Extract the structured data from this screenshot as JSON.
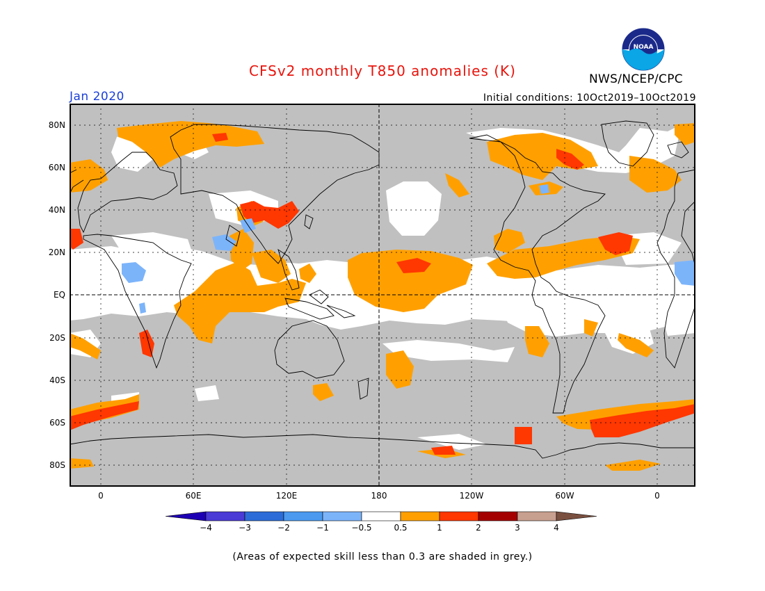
{
  "title": "CFSv2 monthly T850 anomalies (K)",
  "valid_month": "Jan 2020",
  "initial_conditions": "Initial conditions: 10Oct2019–10Oct2019",
  "agency": "NWS/NCEP/CPC",
  "logo_text": "NOAA",
  "footnote": "(Areas of expected skill less than 0.3 are shaded in grey.)",
  "map": {
    "lat_labels": [
      "80N",
      "60N",
      "40N",
      "20N",
      "EQ",
      "20S",
      "40S",
      "60S",
      "80S"
    ],
    "lon_labels": [
      "0",
      "60E",
      "120E",
      "180",
      "120W",
      "60W",
      "0"
    ],
    "colors": {
      "low_skill_grey": "#c0c0c0",
      "neutral": "#ffffff",
      "warm_0_5_1": "#ffa000",
      "warm_1_2": "#ff3700",
      "cool_neg1_neg0_5": "#7cb4fa"
    }
  },
  "colorbar": {
    "labels": [
      "−4",
      "−3",
      "−2",
      "−1",
      "−0.5",
      "0.5",
      "1",
      "2",
      "3",
      "4"
    ],
    "colors": [
      "#1e00b4",
      "#4a3ad6",
      "#2c6cd8",
      "#4b9af0",
      "#7cb4fa",
      "#ffffff",
      "#ffa000",
      "#ff3700",
      "#a50000",
      "#c8a090",
      "#7a5040"
    ]
  }
}
